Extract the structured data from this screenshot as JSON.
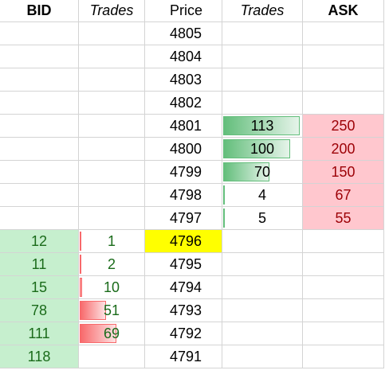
{
  "colors": {
    "bid_fill": "#c6efce",
    "bid_text": "#1a6b1a",
    "ask_fill": "#ffc7ce",
    "ask_text": "#9c0006",
    "price_highlight": "#ffff00",
    "ask_trades_bar": "#63be7b",
    "bid_trades_bar": "#f8696b"
  },
  "headers": {
    "bid": "BID",
    "bid_trades": "Trades",
    "price": "Price",
    "ask_trades": "Trades",
    "ask": "ASK"
  },
  "databar_max": 113,
  "rows": [
    {
      "bid": "",
      "bid_trades": "",
      "price": "4805",
      "ask_trades": "",
      "ask": ""
    },
    {
      "bid": "",
      "bid_trades": "",
      "price": "4804",
      "ask_trades": "",
      "ask": ""
    },
    {
      "bid": "",
      "bid_trades": "",
      "price": "4803",
      "ask_trades": "",
      "ask": ""
    },
    {
      "bid": "",
      "bid_trades": "",
      "price": "4802",
      "ask_trades": "",
      "ask": ""
    },
    {
      "bid": "",
      "bid_trades": "",
      "price": "4801",
      "ask_trades": "113",
      "ask": "250"
    },
    {
      "bid": "",
      "bid_trades": "",
      "price": "4800",
      "ask_trades": "100",
      "ask": "200"
    },
    {
      "bid": "",
      "bid_trades": "",
      "price": "4799",
      "ask_trades": "70",
      "ask": "150"
    },
    {
      "bid": "",
      "bid_trades": "",
      "price": "4798",
      "ask_trades": "4",
      "ask": "67"
    },
    {
      "bid": "",
      "bid_trades": "",
      "price": "4797",
      "ask_trades": "5",
      "ask": "55"
    },
    {
      "bid": "12",
      "bid_trades": "1",
      "price": "4796",
      "ask_trades": "",
      "ask": "",
      "highlight": true
    },
    {
      "bid": "11",
      "bid_trades": "2",
      "price": "4795",
      "ask_trades": "",
      "ask": ""
    },
    {
      "bid": "15",
      "bid_trades": "10",
      "price": "4794",
      "ask_trades": "",
      "ask": ""
    },
    {
      "bid": "78",
      "bid_trades": "51",
      "price": "4793",
      "ask_trades": "",
      "ask": ""
    },
    {
      "bid": "111",
      "bid_trades": "69",
      "price": "4792",
      "ask_trades": "",
      "ask": ""
    },
    {
      "bid": "118",
      "bid_trades": "",
      "price": "4791",
      "ask_trades": "",
      "ask": ""
    }
  ]
}
